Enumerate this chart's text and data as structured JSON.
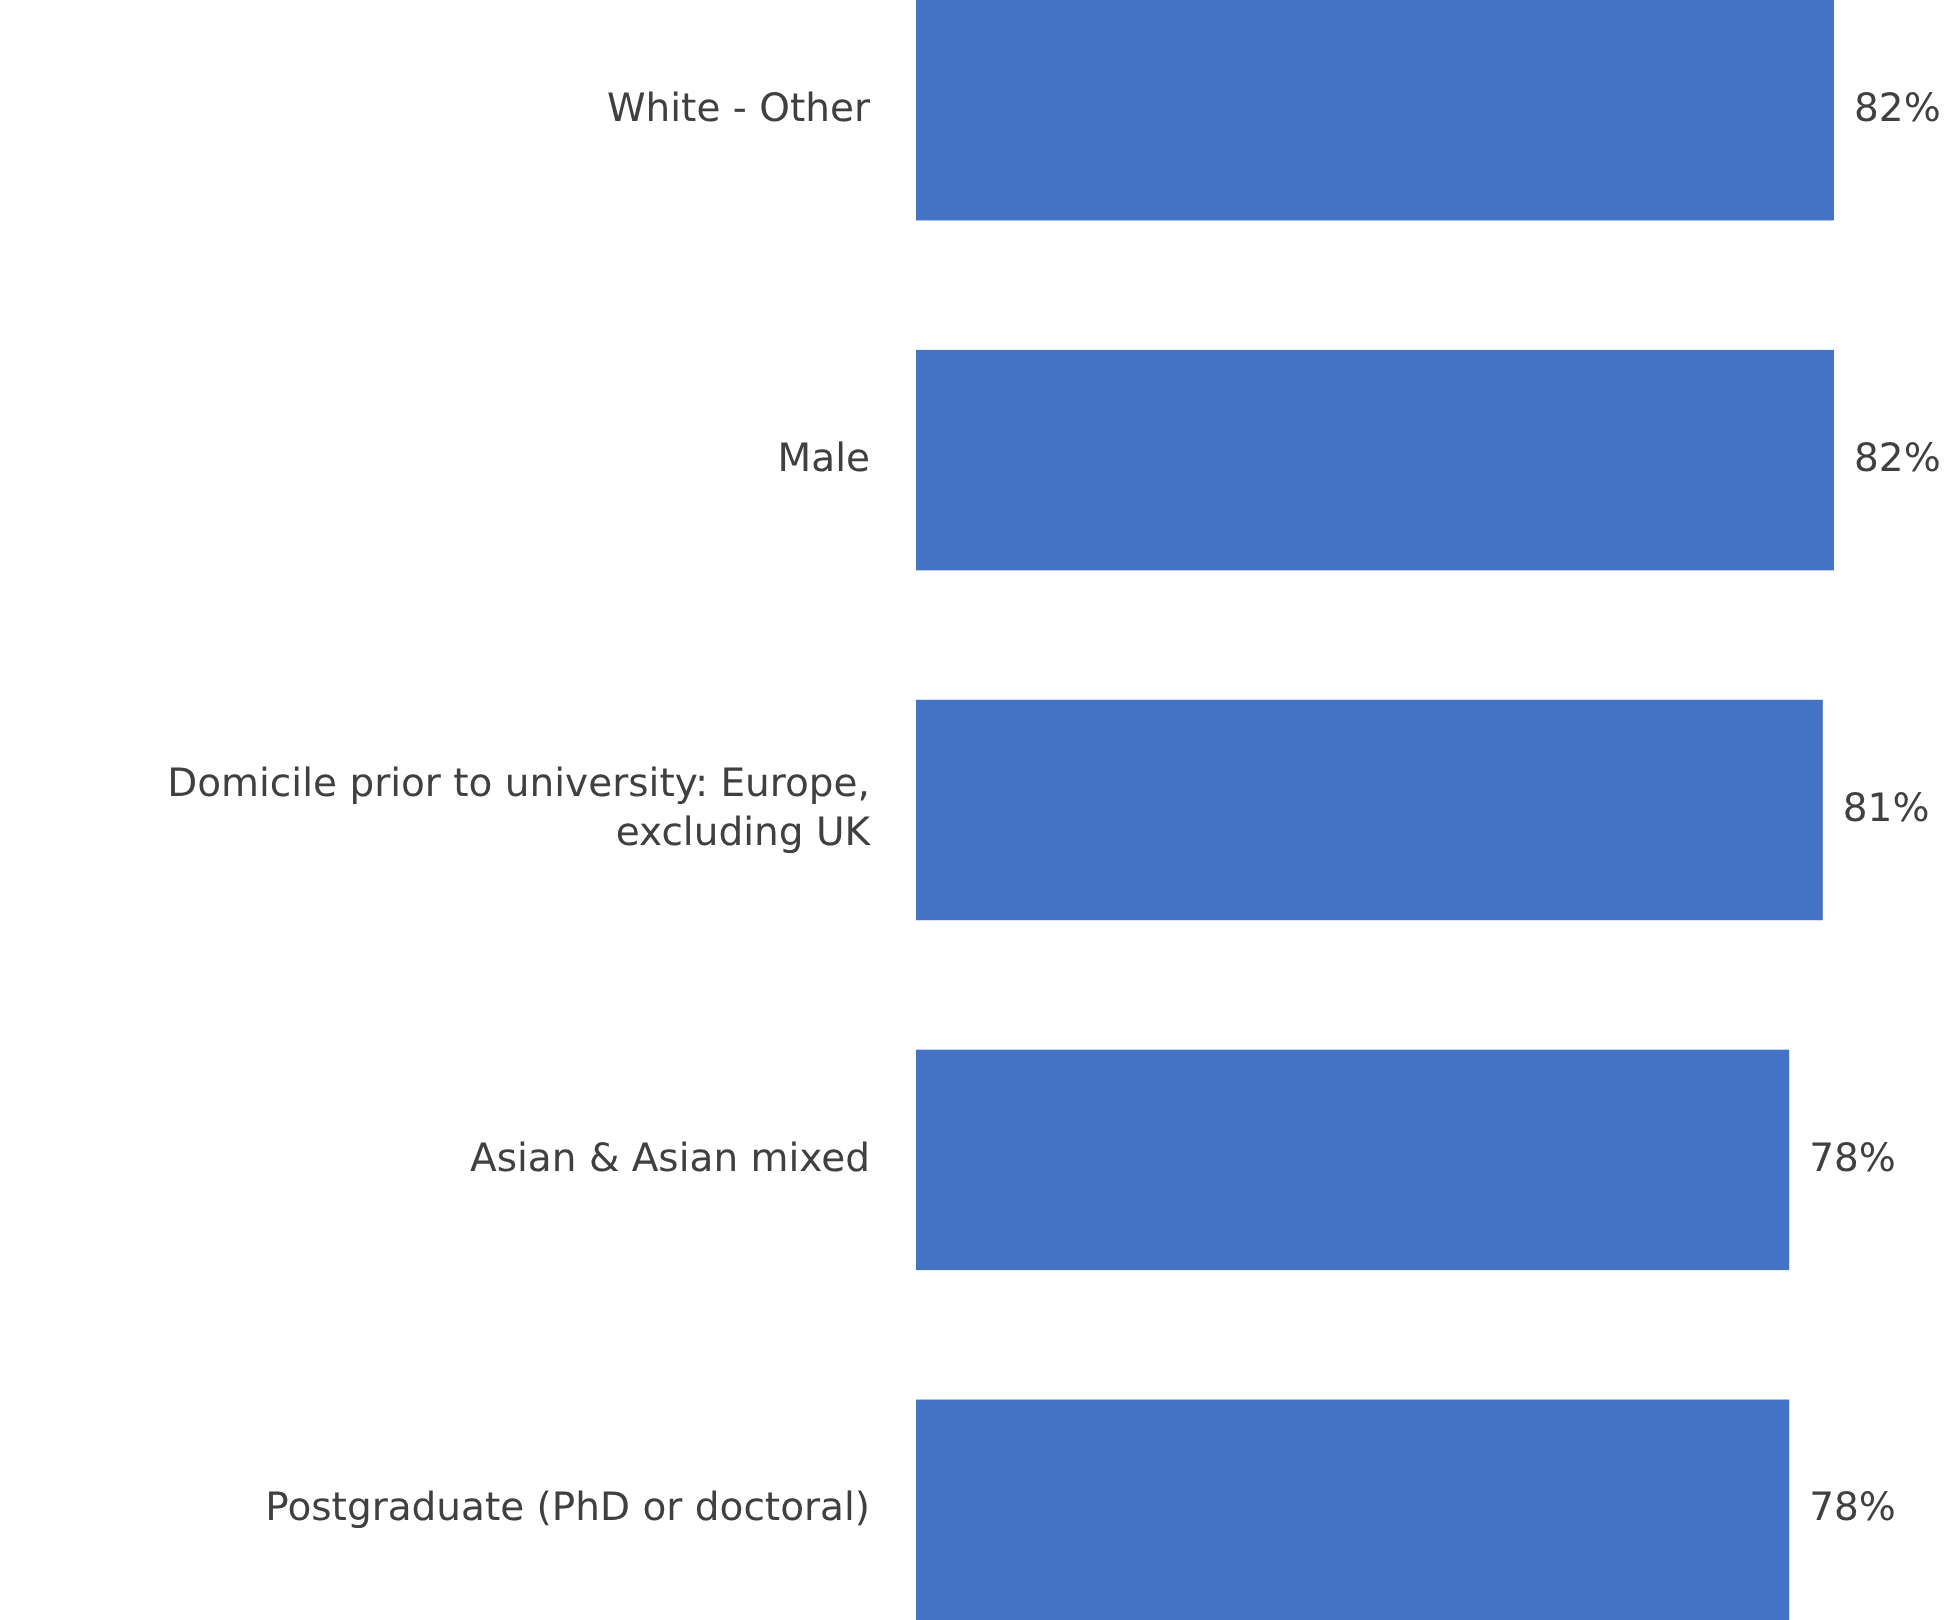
{
  "chart_data": {
    "type": "bar",
    "orientation": "horizontal",
    "categories": [
      "White - Other",
      "Male",
      "Domicile prior to university: Europe, excluding UK",
      "Asian & Asian mixed",
      "Postgraduate (PhD or doctoral)"
    ],
    "values": [
      82,
      82,
      81,
      78,
      78
    ],
    "color": "#4472c4",
    "value_labels": [
      "82%",
      "82%",
      "81%",
      "78%",
      "78%"
    ]
  }
}
